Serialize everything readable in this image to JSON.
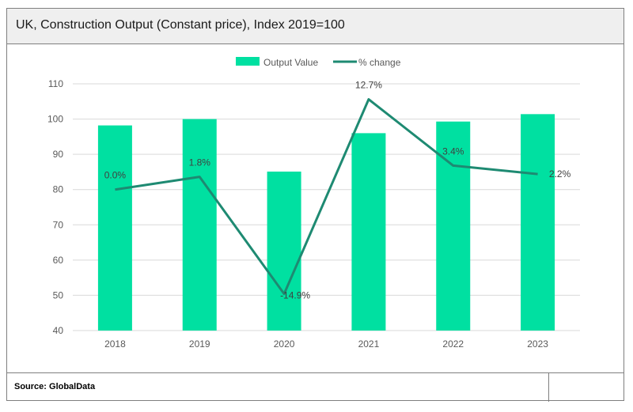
{
  "header": {
    "title": "UK, Construction Output (Constant price), Index 2019=100"
  },
  "footer": {
    "source": "Source: GlobalData"
  },
  "colors": {
    "bar": "#00e0a1",
    "line": "#1e8a72",
    "grid": "#d9d9d9",
    "axis_text": "#595959",
    "label_text": "#404040"
  },
  "chart_data": {
    "type": "bar",
    "categories": [
      "2018",
      "2019",
      "2020",
      "2021",
      "2022",
      "2023"
    ],
    "ylim": [
      40,
      110
    ],
    "yticks": [
      40,
      50,
      60,
      70,
      80,
      90,
      100,
      110
    ],
    "grid": true,
    "legend_position": "top-center",
    "series": [
      {
        "name": "Output Value",
        "type": "bar",
        "values": [
          98.2,
          100,
          85.1,
          96.0,
          99.3,
          101.4
        ]
      },
      {
        "name": "% change",
        "type": "line",
        "values": [
          80.0,
          83.6,
          50.4,
          105.6,
          86.8,
          84.4
        ],
        "labels": [
          "0.0%",
          "1.8%",
          "-14.9%",
          "12.7%",
          "3.4%",
          "2.2%"
        ]
      }
    ]
  }
}
